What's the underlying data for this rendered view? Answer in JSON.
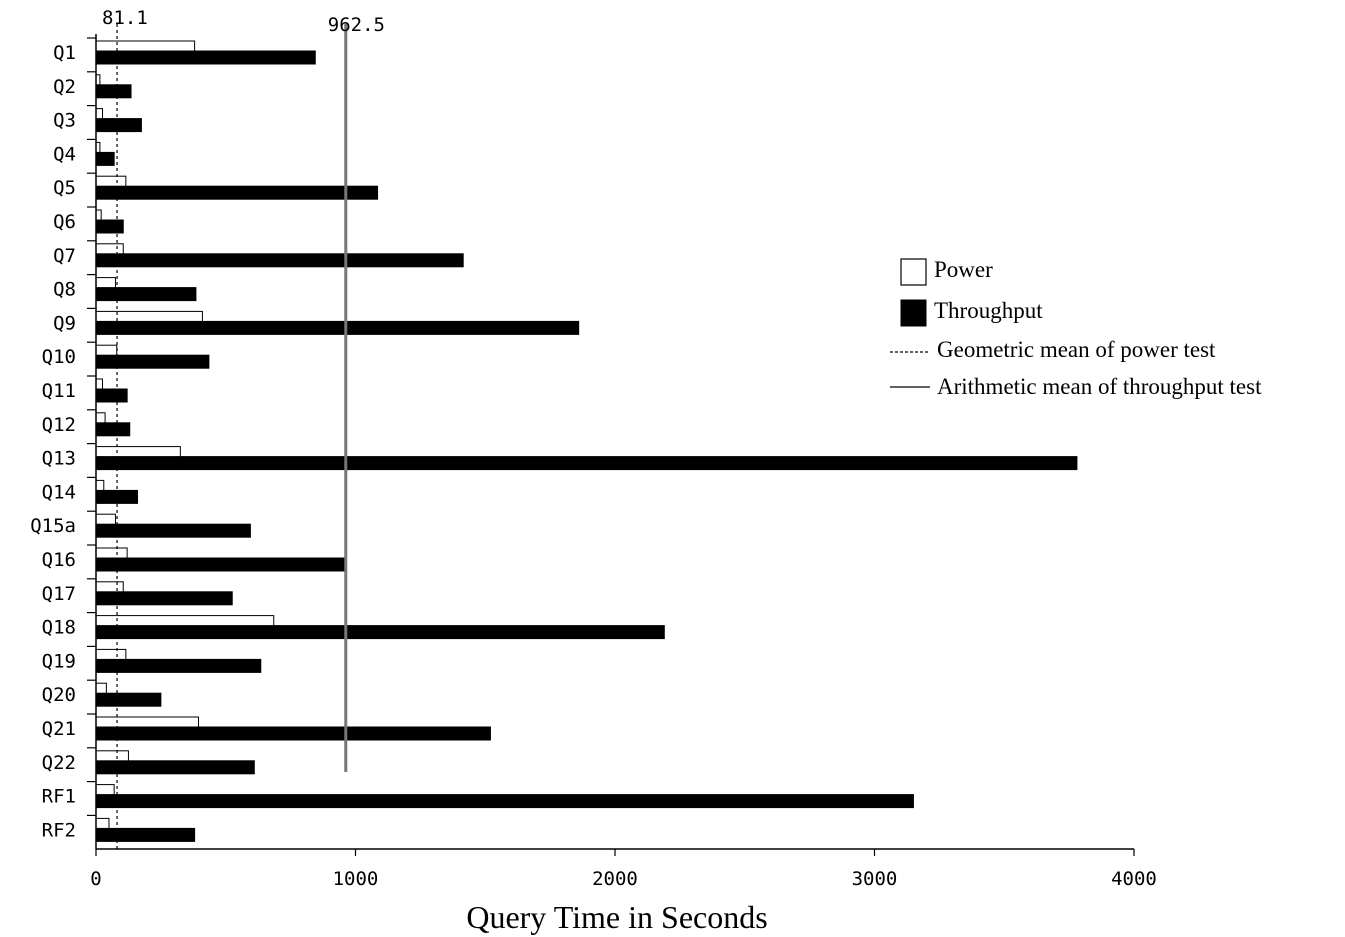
{
  "chart_data": {
    "type": "bar",
    "orientation": "horizontal",
    "title": "",
    "xlabel": "Query Time in Seconds",
    "ylabel": "",
    "xlim": [
      0,
      4000
    ],
    "x_ticks": [
      "0",
      "1000",
      "2000",
      "3000",
      "4000"
    ],
    "categories": [
      "Q1",
      "Q2",
      "Q3",
      "Q4",
      "Q5",
      "Q6",
      "Q7",
      "Q8",
      "Q9",
      "Q10",
      "Q11",
      "Q12",
      "Q13",
      "Q14",
      "Q15a",
      "Q16",
      "Q17",
      "Q18",
      "Q19",
      "Q20",
      "Q21",
      "Q22",
      "RF1",
      "RF2"
    ],
    "series": [
      {
        "name": "Power",
        "fill": "#ffffff",
        "values": [
          380,
          15,
          25,
          15,
          115,
          20,
          105,
          75,
          410,
          80,
          25,
          35,
          325,
          30,
          75,
          120,
          105,
          685,
          115,
          40,
          395,
          125,
          70,
          50
        ]
      },
      {
        "name": "Throughput",
        "fill": "#000000",
        "values": [
          845,
          135,
          175,
          70,
          1085,
          105,
          1415,
          385,
          1860,
          435,
          120,
          130,
          3780,
          160,
          595,
          965,
          525,
          2190,
          635,
          250,
          1520,
          610,
          3150,
          380
        ]
      }
    ],
    "reference_lines": [
      {
        "name": "Geometric mean of power test",
        "value": 81.1,
        "label": "81.1",
        "style": "dashed"
      },
      {
        "name": "Arithmetic mean of throughput test",
        "value": 962.5,
        "label": "962.5",
        "style": "solid"
      }
    ],
    "legend": {
      "placement": "right",
      "entries": [
        {
          "kind": "box-white",
          "label": "Power"
        },
        {
          "kind": "box-black",
          "label": "Throughput"
        },
        {
          "kind": "line-dashed",
          "label": "Geometric mean of power test"
        },
        {
          "kind": "line-solid",
          "label": "Arithmetic mean of throughput test"
        }
      ]
    },
    "grid": false
  }
}
